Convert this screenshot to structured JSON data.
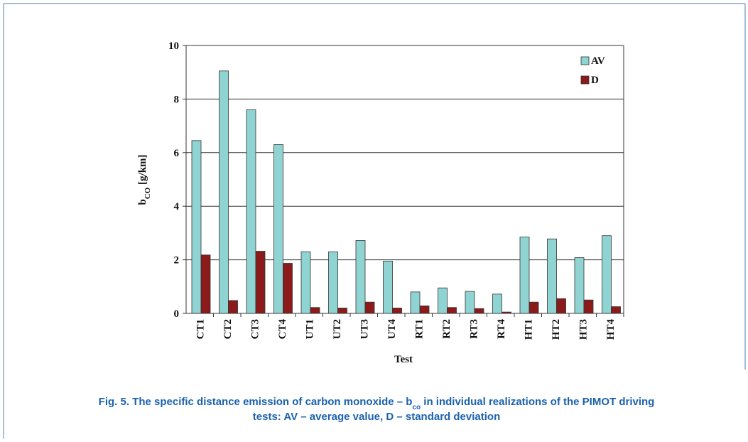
{
  "chart_data": {
    "type": "bar",
    "y_label": {
      "main": "b",
      "sub": "CO",
      "rest": " [g/km]"
    },
    "x_label": "Test",
    "categories": [
      "CT1",
      "CT2",
      "CT3",
      "CT4",
      "UT1",
      "UT2",
      "UT3",
      "UT4",
      "RT1",
      "RT2",
      "RT3",
      "RT4",
      "HT1",
      "HT2",
      "HT3",
      "HT4"
    ],
    "series": [
      {
        "name": "AV",
        "color": "#8fd3d3",
        "values": [
          6.45,
          9.05,
          7.6,
          6.3,
          2.3,
          2.3,
          2.72,
          1.95,
          0.8,
          0.95,
          0.82,
          0.72,
          2.85,
          2.78,
          2.08,
          2.9
        ]
      },
      {
        "name": "D",
        "color": "#8b1a1a",
        "values": [
          2.18,
          0.48,
          2.32,
          1.87,
          0.22,
          0.2,
          0.42,
          0.2,
          0.28,
          0.22,
          0.18,
          0.05,
          0.42,
          0.55,
          0.5,
          0.25
        ]
      }
    ],
    "ylim": [
      0,
      10
    ],
    "yticks": [
      0,
      2,
      4,
      6,
      8,
      10
    ],
    "grid": true,
    "legend": "top-right"
  },
  "caption": {
    "parts": [
      "Fig. 5. The specific distance emission of carbon monoxide – b",
      "co",
      " in individual realizations of the PIMOT driving",
      "tests: AV – average value, D – standard deviation"
    ]
  }
}
